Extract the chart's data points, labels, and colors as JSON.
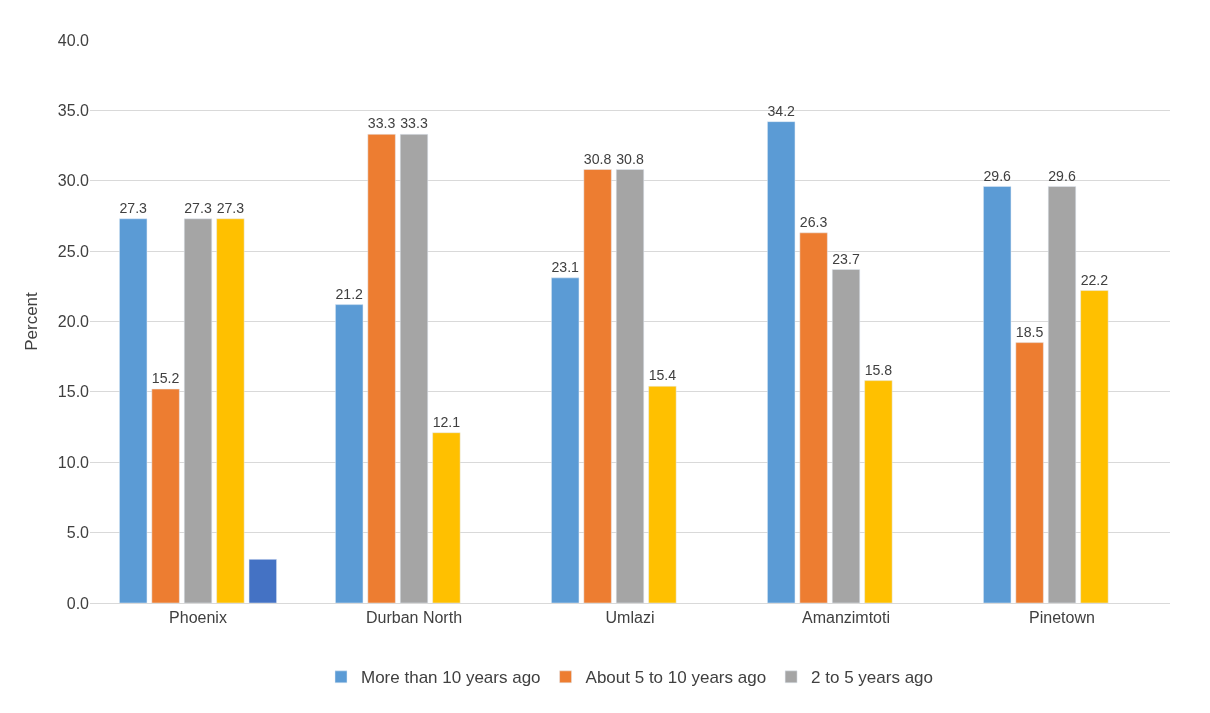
{
  "chart_data": {
    "type": "bar",
    "ylabel": "Percent",
    "categories": [
      "Phoenix",
      "Durban North",
      "Umlazi",
      "Amanzimtoti",
      "Pinetown"
    ],
    "series": [
      {
        "name": "More than 10 years ago",
        "color": "#5b9bd5",
        "values": [
          27.3,
          21.2,
          23.1,
          34.2,
          29.6
        ],
        "value_labels": [
          "27.3",
          "21.2",
          "23.1",
          "34.2",
          "29.6"
        ]
      },
      {
        "name": "About 5 to 10 years ago",
        "color": "#ed7d31",
        "values": [
          15.2,
          33.3,
          30.8,
          26.3,
          18.5
        ],
        "value_labels": [
          "15.2",
          "33.3",
          "30.8",
          "26.3",
          "18.5"
        ]
      },
      {
        "name": "2 to 5 years ago",
        "color": "#a5a5a5",
        "values": [
          27.3,
          33.3,
          30.8,
          23.7,
          29.6
        ],
        "value_labels": [
          "27.3",
          "33.3",
          "30.8",
          "23.7",
          "29.6"
        ]
      },
      {
        "color": "#ffc000",
        "values": [
          27.3,
          12.1,
          15.4,
          15.8,
          22.2
        ],
        "value_labels": [
          "27.3",
          "12.1",
          "15.4",
          "15.8",
          "22.2"
        ]
      },
      {
        "color": "#4472c4",
        "values": [
          3.1,
          null,
          null,
          null,
          null
        ]
      }
    ],
    "ylim": [
      0,
      40
    ],
    "yticks": [
      {
        "value": 0,
        "label": "0.0"
      },
      {
        "value": 5,
        "label": "5.0"
      },
      {
        "value": 10,
        "label": "10.0"
      },
      {
        "value": 15,
        "label": "15.0"
      },
      {
        "value": 20,
        "label": "20.0"
      },
      {
        "value": 25,
        "label": "25.0"
      },
      {
        "value": 30,
        "label": "30.0"
      },
      {
        "value": 35,
        "label": "35.0"
      },
      {
        "value": 40,
        "label": "40.0"
      }
    ],
    "grid": "y",
    "legend": "bottom"
  }
}
